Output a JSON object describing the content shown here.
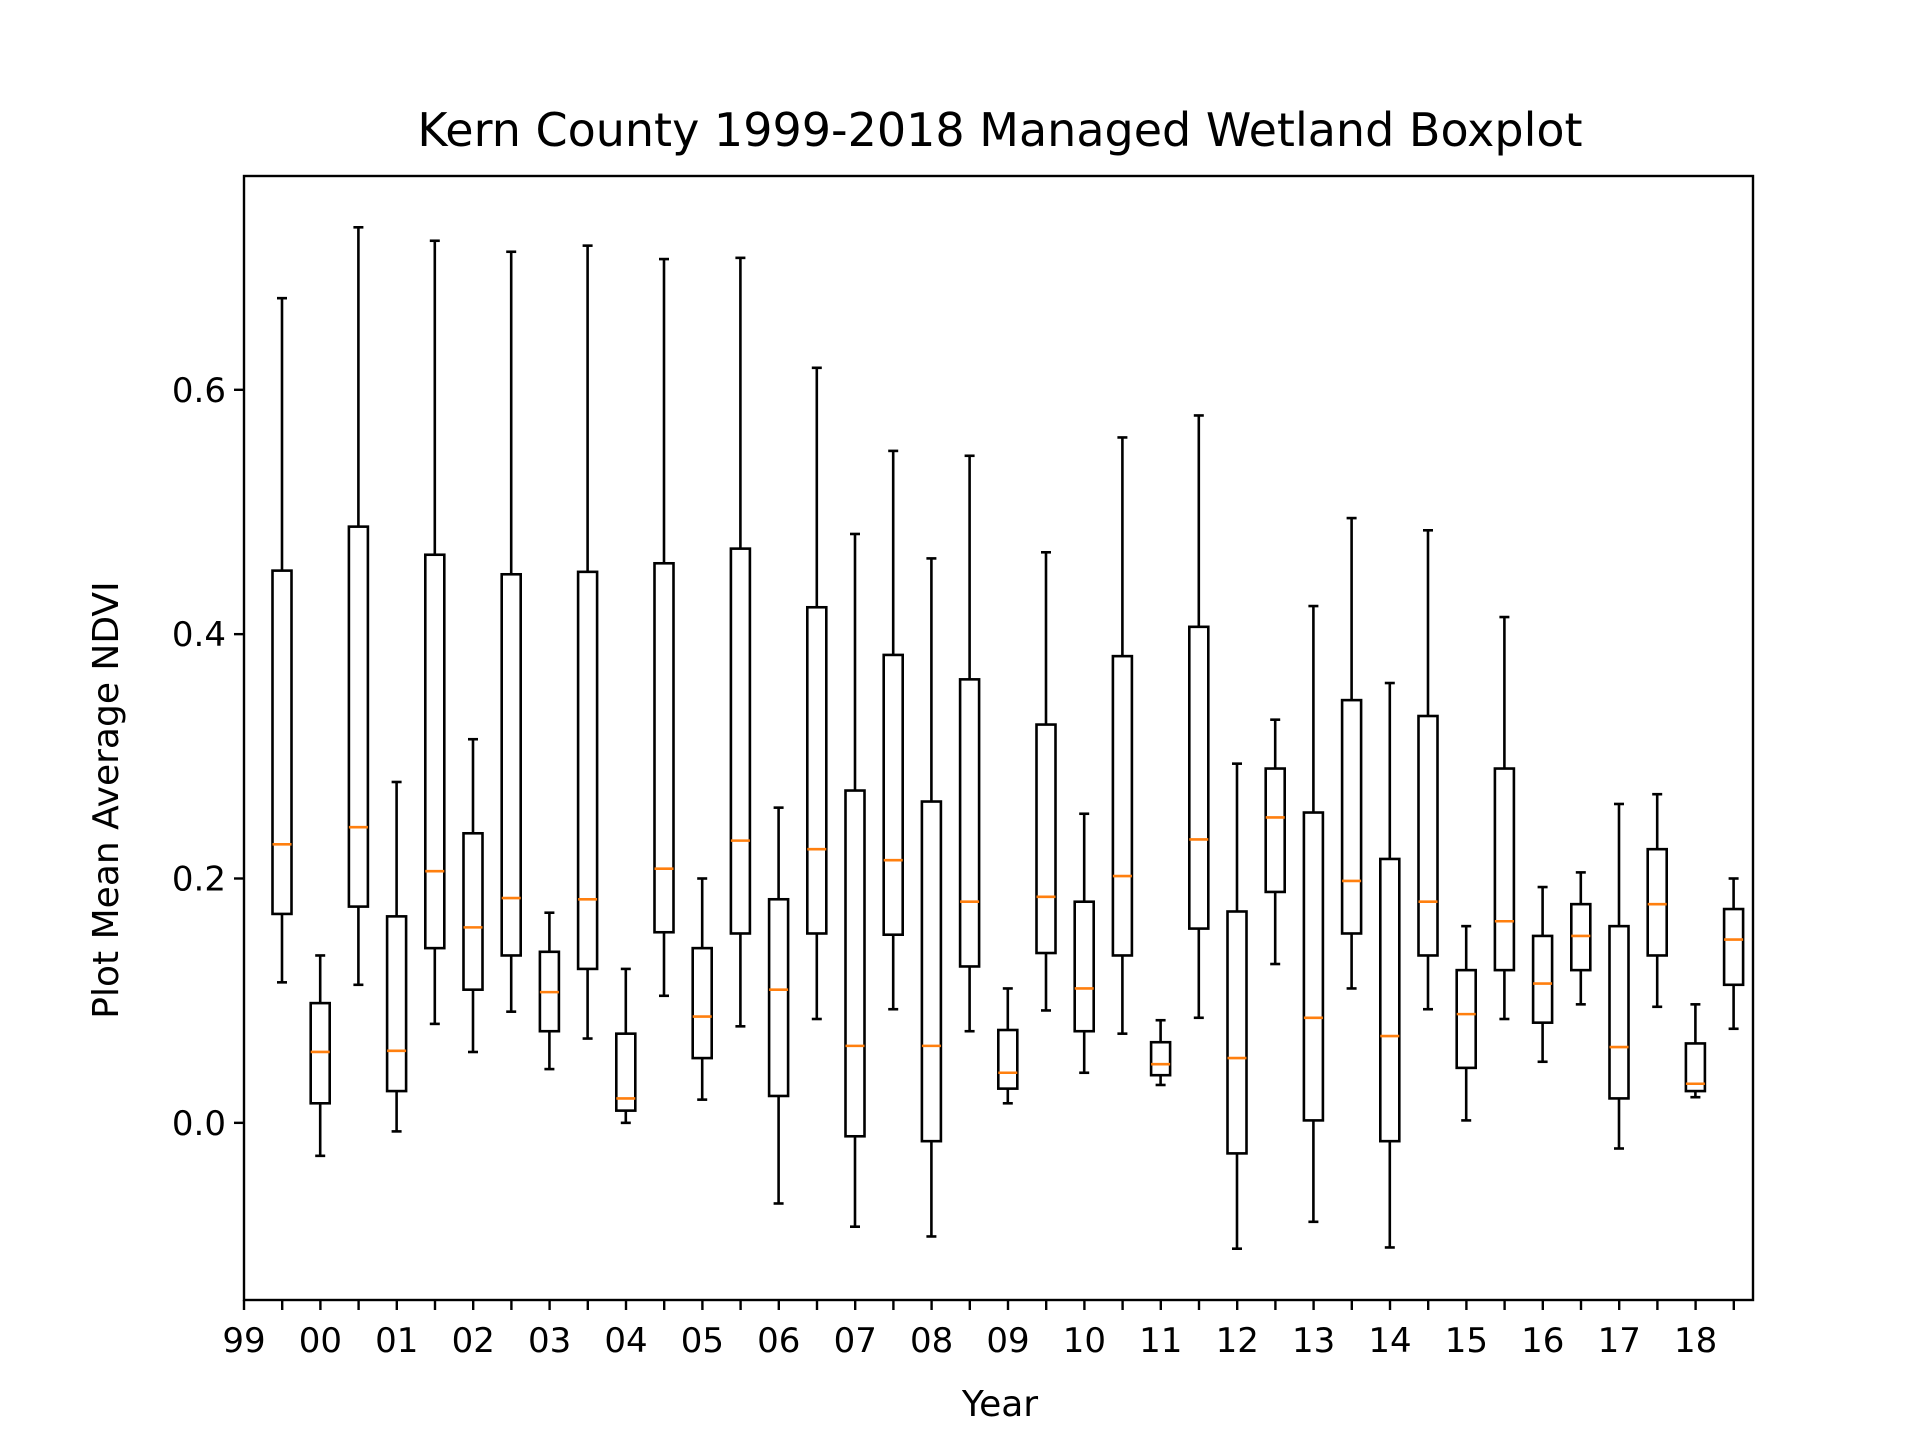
{
  "chart_data": {
    "type": "boxplot",
    "title": "Kern County 1999-2018 Managed Wetland Boxplot",
    "xlabel": "Year",
    "ylabel": "Plot Mean Average NDVI",
    "x_tick_labels": [
      "99",
      "00",
      "01",
      "02",
      "03",
      "04",
      "05",
      "06",
      "07",
      "08",
      "09",
      "10",
      "11",
      "12",
      "13",
      "14",
      "15",
      "16",
      "17",
      "18"
    ],
    "y_ticks": [
      0.0,
      0.2,
      0.4,
      0.6
    ],
    "y_tick_labels": [
      "0.0",
      "0.2",
      "0.4",
      "0.6"
    ],
    "ylim": [
      -0.145,
      0.775
    ],
    "grid": false,
    "box_count": 39,
    "colors": {
      "box": "#000000",
      "median": "#ff7f0e",
      "background": "#ffffff"
    },
    "boxes": [
      {
        "whislo": 0.115,
        "q1": 0.171,
        "med": 0.228,
        "q3": 0.452,
        "whishi": 0.675
      },
      {
        "whislo": -0.027,
        "q1": 0.016,
        "med": 0.058,
        "q3": 0.098,
        "whishi": 0.137
      },
      {
        "whislo": 0.113,
        "q1": 0.177,
        "med": 0.242,
        "q3": 0.488,
        "whishi": 0.733
      },
      {
        "whislo": -0.007,
        "q1": 0.026,
        "med": 0.059,
        "q3": 0.169,
        "whishi": 0.279
      },
      {
        "whislo": 0.081,
        "q1": 0.143,
        "med": 0.206,
        "q3": 0.465,
        "whishi": 0.722
      },
      {
        "whislo": 0.058,
        "q1": 0.109,
        "med": 0.16,
        "q3": 0.237,
        "whishi": 0.314
      },
      {
        "whislo": 0.091,
        "q1": 0.137,
        "med": 0.184,
        "q3": 0.449,
        "whishi": 0.713
      },
      {
        "whislo": 0.044,
        "q1": 0.075,
        "med": 0.107,
        "q3": 0.14,
        "whishi": 0.172
      },
      {
        "whislo": 0.069,
        "q1": 0.126,
        "med": 0.183,
        "q3": 0.451,
        "whishi": 0.718
      },
      {
        "whislo": 0.0,
        "q1": 0.01,
        "med": 0.02,
        "q3": 0.073,
        "whishi": 0.126
      },
      {
        "whislo": 0.104,
        "q1": 0.156,
        "med": 0.208,
        "q3": 0.458,
        "whishi": 0.707
      },
      {
        "whislo": 0.019,
        "q1": 0.053,
        "med": 0.087,
        "q3": 0.143,
        "whishi": 0.2
      },
      {
        "whislo": 0.079,
        "q1": 0.155,
        "med": 0.231,
        "q3": 0.47,
        "whishi": 0.708
      },
      {
        "whislo": -0.066,
        "q1": 0.022,
        "med": 0.109,
        "q3": 0.183,
        "whishi": 0.258
      },
      {
        "whislo": 0.085,
        "q1": 0.155,
        "med": 0.224,
        "q3": 0.422,
        "whishi": 0.618
      },
      {
        "whislo": -0.085,
        "q1": -0.011,
        "med": 0.063,
        "q3": 0.272,
        "whishi": 0.482
      },
      {
        "whislo": 0.093,
        "q1": 0.154,
        "med": 0.215,
        "q3": 0.383,
        "whishi": 0.55
      },
      {
        "whislo": -0.093,
        "q1": -0.015,
        "med": 0.063,
        "q3": 0.263,
        "whishi": 0.462
      },
      {
        "whislo": 0.075,
        "q1": 0.128,
        "med": 0.181,
        "q3": 0.363,
        "whishi": 0.546
      },
      {
        "whislo": 0.016,
        "q1": 0.028,
        "med": 0.041,
        "q3": 0.076,
        "whishi": 0.11
      },
      {
        "whislo": 0.092,
        "q1": 0.139,
        "med": 0.185,
        "q3": 0.326,
        "whishi": 0.467
      },
      {
        "whislo": 0.041,
        "q1": 0.075,
        "med": 0.11,
        "q3": 0.181,
        "whishi": 0.253
      },
      {
        "whislo": 0.073,
        "q1": 0.137,
        "med": 0.202,
        "q3": 0.382,
        "whishi": 0.561
      },
      {
        "whislo": 0.031,
        "q1": 0.039,
        "med": 0.048,
        "q3": 0.066,
        "whishi": 0.084
      },
      {
        "whislo": 0.086,
        "q1": 0.159,
        "med": 0.232,
        "q3": 0.406,
        "whishi": 0.579
      },
      {
        "whislo": -0.103,
        "q1": -0.025,
        "med": 0.053,
        "q3": 0.173,
        "whishi": 0.294
      },
      {
        "whislo": 0.13,
        "q1": 0.189,
        "med": 0.25,
        "q3": 0.29,
        "whishi": 0.33
      },
      {
        "whislo": -0.081,
        "q1": 0.002,
        "med": 0.086,
        "q3": 0.254,
        "whishi": 0.423
      },
      {
        "whislo": 0.11,
        "q1": 0.155,
        "med": 0.198,
        "q3": 0.346,
        "whishi": 0.495
      },
      {
        "whislo": -0.102,
        "q1": -0.015,
        "med": 0.071,
        "q3": 0.216,
        "whishi": 0.36
      },
      {
        "whislo": 0.093,
        "q1": 0.137,
        "med": 0.181,
        "q3": 0.333,
        "whishi": 0.485
      },
      {
        "whislo": 0.002,
        "q1": 0.045,
        "med": 0.089,
        "q3": 0.125,
        "whishi": 0.161
      },
      {
        "whislo": 0.085,
        "q1": 0.125,
        "med": 0.165,
        "q3": 0.29,
        "whishi": 0.414
      },
      {
        "whislo": 0.05,
        "q1": 0.082,
        "med": 0.114,
        "q3": 0.153,
        "whishi": 0.193
      },
      {
        "whislo": 0.097,
        "q1": 0.125,
        "med": 0.153,
        "q3": 0.179,
        "whishi": 0.205
      },
      {
        "whislo": -0.021,
        "q1": 0.02,
        "med": 0.062,
        "q3": 0.161,
        "whishi": 0.261
      },
      {
        "whislo": 0.095,
        "q1": 0.137,
        "med": 0.179,
        "q3": 0.224,
        "whishi": 0.269
      },
      {
        "whislo": 0.021,
        "q1": 0.026,
        "med": 0.032,
        "q3": 0.065,
        "whishi": 0.097
      },
      {
        "whislo": 0.077,
        "q1": 0.113,
        "med": 0.15,
        "q3": 0.175,
        "whishi": 0.2
      }
    ]
  }
}
